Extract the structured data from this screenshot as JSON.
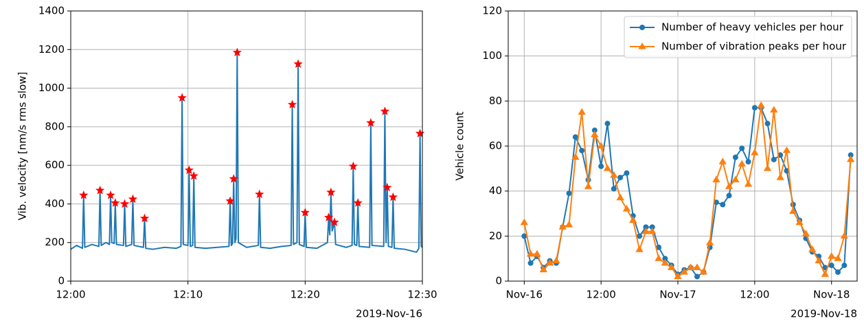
{
  "chart_data": [
    {
      "type": "line",
      "ylabel": "Vib. velocity [nm/s rms slow]",
      "x_offset_text": "2019-Nov-16",
      "xlim": [
        0,
        30
      ],
      "ylim": [
        0,
        1400
      ],
      "xticks": [
        {
          "value": 0,
          "label": "12:00"
        },
        {
          "value": 10,
          "label": "12:10"
        },
        {
          "value": 20,
          "label": "12:20"
        },
        {
          "value": 30,
          "label": "12:30"
        }
      ],
      "yticks": [
        0,
        200,
        400,
        600,
        800,
        1000,
        1200,
        1400
      ],
      "grid": true,
      "series": [
        {
          "color": "#1f77b4",
          "marker": "none",
          "linestyle": "solid",
          "x": [
            0,
            0.5,
            1.0,
            1.1,
            1.2,
            1.8,
            2.4,
            2.5,
            2.6,
            3.0,
            3.3,
            3.4,
            3.5,
            3.7,
            3.8,
            3.9,
            4.5,
            4.6,
            4.7,
            5.2,
            5.3,
            5.4,
            6.2,
            6.3,
            6.4,
            7.0,
            8.0,
            9.0,
            9.4,
            9.5,
            9.6,
            10.0,
            10.1,
            10.2,
            10.4,
            10.5,
            10.6,
            11.5,
            12.5,
            13.5,
            13.6,
            13.7,
            13.8,
            13.9,
            14.0,
            14.1,
            14.2,
            14.3,
            15.0,
            16.0,
            16.1,
            16.2,
            17.0,
            18.0,
            18.8,
            18.9,
            19.0,
            19.3,
            19.4,
            19.5,
            19.9,
            20.0,
            20.1,
            21.0,
            21.9,
            22.0,
            22.1,
            22.2,
            22.3,
            22.5,
            22.6,
            23.5,
            24.0,
            24.1,
            24.2,
            24.4,
            24.5,
            24.6,
            25.5,
            25.6,
            25.7,
            26.7,
            26.8,
            26.9,
            27.0,
            27.1,
            27.4,
            27.5,
            27.6,
            28.5,
            29.5,
            29.7,
            29.8,
            29.9,
            30
          ],
          "values": [
            165,
            185,
            170,
            445,
            175,
            190,
            180,
            470,
            185,
            200,
            190,
            445,
            200,
            195,
            405,
            190,
            185,
            400,
            180,
            190,
            425,
            185,
            175,
            325,
            170,
            165,
            175,
            170,
            180,
            950,
            190,
            185,
            575,
            180,
            185,
            545,
            175,
            170,
            175,
            180,
            415,
            185,
            195,
            530,
            200,
            220,
            1185,
            200,
            175,
            185,
            450,
            175,
            170,
            180,
            185,
            915,
            190,
            200,
            1125,
            190,
            180,
            355,
            175,
            170,
            200,
            330,
            240,
            460,
            260,
            305,
            190,
            175,
            185,
            595,
            190,
            185,
            405,
            180,
            175,
            820,
            185,
            180,
            880,
            200,
            485,
            180,
            175,
            435,
            170,
            165,
            150,
            170,
            765,
            180,
            175
          ]
        },
        {
          "color": "#ff0000",
          "marker": "star",
          "linestyle": "none",
          "x": [
            1.1,
            2.5,
            3.4,
            3.8,
            4.6,
            5.3,
            6.3,
            9.5,
            10.1,
            10.5,
            13.6,
            13.9,
            14.2,
            16.1,
            18.9,
            19.4,
            20.0,
            22.0,
            22.2,
            22.5,
            24.1,
            24.5,
            25.6,
            26.8,
            27.0,
            27.5,
            29.8
          ],
          "values": [
            445,
            470,
            445,
            405,
            400,
            425,
            325,
            950,
            575,
            545,
            415,
            530,
            1185,
            450,
            915,
            1125,
            355,
            330,
            460,
            305,
            595,
            405,
            820,
            880,
            485,
            435,
            765
          ]
        }
      ]
    },
    {
      "type": "line",
      "ylabel": "Vehicle count",
      "x_offset_text": "2019-Nov-18",
      "xlim": [
        -2.5,
        52
      ],
      "ylim": [
        0,
        120
      ],
      "xticks": [
        {
          "value": 0,
          "label": "Nov-16"
        },
        {
          "value": 12,
          "label": "12:00"
        },
        {
          "value": 24,
          "label": "Nov-17"
        },
        {
          "value": 36,
          "label": "12:00"
        },
        {
          "value": 48,
          "label": "Nov-18"
        }
      ],
      "yticks": [
        0,
        20,
        40,
        60,
        80,
        100,
        120
      ],
      "grid": true,
      "legend": "upper right",
      "x": [
        0,
        1,
        2,
        3,
        4,
        5,
        6,
        7,
        8,
        9,
        10,
        11,
        12,
        13,
        14,
        15,
        16,
        17,
        18,
        19,
        20,
        21,
        22,
        23,
        24,
        25,
        26,
        27,
        28,
        29,
        30,
        31,
        32,
        33,
        34,
        35,
        36,
        37,
        38,
        39,
        40,
        41,
        42,
        43,
        44,
        45,
        46,
        47,
        48,
        49,
        50,
        51
      ],
      "series": [
        {
          "name": "Number of heavy vehicles per hour",
          "color": "#1f77b4",
          "marker": "circle",
          "linestyle": "solid",
          "values": [
            20,
            8,
            11,
            6,
            9,
            8,
            24,
            39,
            64,
            58,
            45,
            67,
            51,
            70,
            41,
            46,
            48,
            29,
            20,
            24,
            24,
            15,
            10,
            7,
            3,
            5,
            6,
            2,
            4,
            15,
            35,
            34,
            38,
            55,
            59,
            53,
            77,
            77,
            70,
            54,
            56,
            49,
            34,
            27,
            19,
            13,
            11,
            6,
            7,
            4,
            7,
            56
          ]
        },
        {
          "name": "Number of vibration peaks per hour",
          "color": "#ff7f0e",
          "marker": "triangle",
          "linestyle": "solid",
          "values": [
            26,
            12,
            12,
            5,
            8,
            9,
            24,
            25,
            55,
            75,
            42,
            65,
            60,
            50,
            47,
            37,
            32,
            27,
            14,
            22,
            22,
            10,
            8,
            6,
            2,
            4,
            6,
            6,
            4,
            17,
            45,
            53,
            42,
            45,
            52,
            43,
            57,
            78,
            50,
            76,
            46,
            58,
            31,
            26,
            21,
            14,
            9,
            3,
            11,
            10,
            20,
            54
          ]
        }
      ]
    }
  ]
}
